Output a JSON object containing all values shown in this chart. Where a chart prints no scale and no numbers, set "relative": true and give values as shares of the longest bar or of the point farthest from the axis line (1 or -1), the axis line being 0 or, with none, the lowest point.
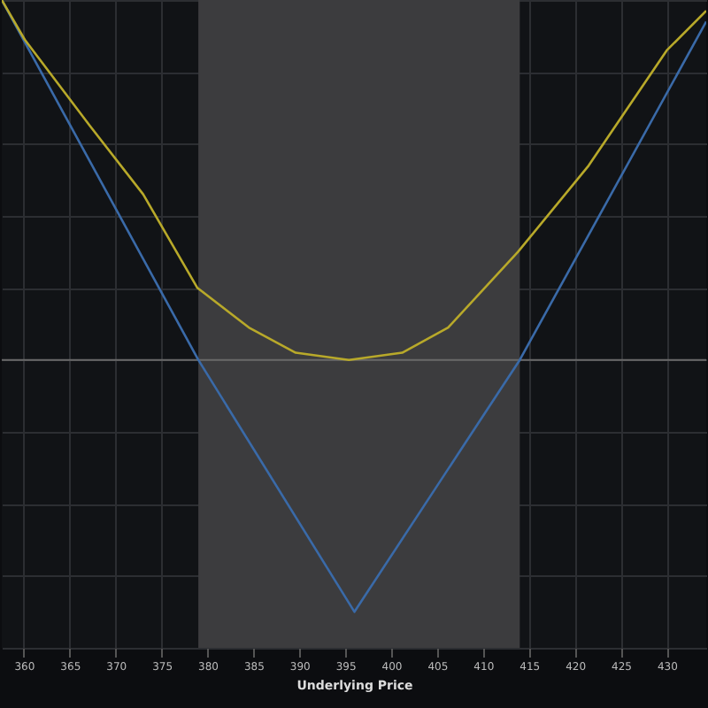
{
  "chart_data": {
    "type": "line",
    "xlabel": "Underlying Price",
    "relative": true,
    "grid": true,
    "legend": false,
    "xlim": [
      357.6,
      434.3
    ],
    "xticks": [
      360,
      365,
      370,
      375,
      380,
      385,
      390,
      395,
      400,
      405,
      410,
      415,
      420,
      425,
      430
    ],
    "bands": [
      {
        "axis": "x",
        "from": 379,
        "to": 414,
        "color": "#3c3c3e"
      }
    ],
    "series": [
      {
        "color": "#3a6aa8",
        "x": [
          357.6,
          379,
          396,
          414,
          434.3
        ],
        "values": [
          1,
          0,
          -0.7,
          0,
          0.94
        ]
      },
      {
        "color": "#b8a92a",
        "x": [
          357.6,
          360.1,
          367.2,
          373,
          378.9,
          384.5,
          389.6,
          395.4,
          401.2,
          406.2,
          413.8,
          421.5,
          430,
          434.3
        ],
        "values": [
          1,
          0.89,
          0.65,
          0.46,
          0.2,
          0.09,
          0.02,
          0,
          0.02,
          0.09,
          0.3,
          0.54,
          0.86,
          0.97
        ]
      }
    ]
  }
}
